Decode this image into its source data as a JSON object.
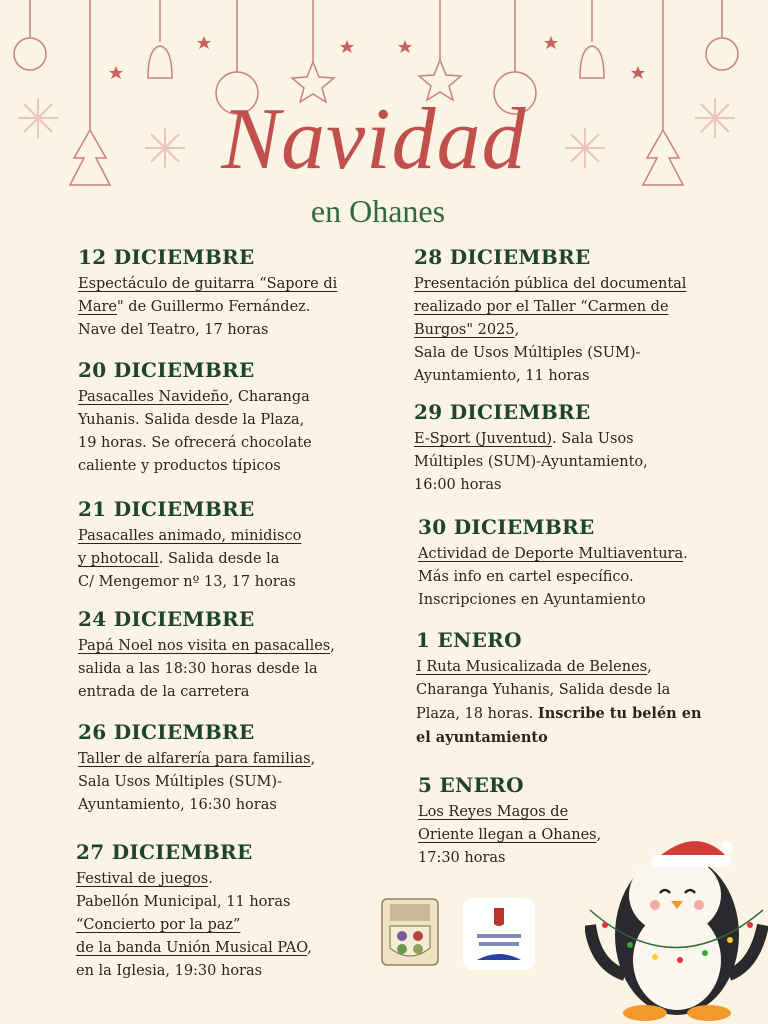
{
  "header": {
    "title": "Navidad",
    "subtitle": "en Ohanes"
  },
  "colors": {
    "background": "#fbf3e3",
    "title": "#c1504c",
    "date": "#1e4526",
    "accent_green": "#2f6a3b"
  },
  "events": [
    {
      "date": "12 DICIEMBRE",
      "lines": [
        [
          {
            "t": "Espectáculo de guitarra “Sapore di",
            "u": true
          }
        ],
        [
          {
            "t": "Mare",
            "u": true
          },
          {
            "t": "\" de  Guillermo Fernández."
          }
        ],
        [
          {
            "t": "Nave del Teatro, 17 horas"
          }
        ]
      ]
    },
    {
      "date": "20 DICIEMBRE",
      "lines": [
        [
          {
            "t": "Pasacalles Navideño",
            "u": true
          },
          {
            "t": ", Charanga"
          }
        ],
        [
          {
            "t": "Yuhanis. Salida desde la Plaza,"
          }
        ],
        [
          {
            "t": "19 horas. Se ofrecerá chocolate"
          }
        ],
        [
          {
            "t": "caliente y productos típicos"
          }
        ]
      ]
    },
    {
      "date": "21 DICIEMBRE",
      "lines": [
        [
          {
            "t": "Pasacalles  animado, minidisco",
            "u": true
          }
        ],
        [
          {
            "t": "y photocall",
            "u": true
          },
          {
            "t": ". Salida desde la"
          }
        ],
        [
          {
            "t": " C/ Mengemor nº 13, 17 horas"
          }
        ]
      ]
    },
    {
      "date": "24 DICIEMBRE",
      "lines": [
        [
          {
            "t": "Papá Noel nos visita en pasacalles",
            "u": true
          },
          {
            "t": ","
          }
        ],
        [
          {
            "t": "salida a las 18:30 horas desde la"
          }
        ],
        [
          {
            "t": "entrada de la carretera"
          }
        ]
      ]
    },
    {
      "date": "26 DICIEMBRE",
      "lines": [
        [
          {
            "t": "Taller de alfarería para familias",
            "u": true
          },
          {
            "t": ","
          }
        ],
        [
          {
            "t": "Sala Usos Múltiples (SUM)-"
          }
        ],
        [
          {
            "t": "Ayuntamiento,  16:30 horas"
          }
        ]
      ]
    },
    {
      "date": "27 DICIEMBRE",
      "lines": [
        [
          {
            "t": "Festival de juegos",
            "u": true
          },
          {
            "t": "."
          }
        ],
        [
          {
            "t": "Pabellón Municipal, 11 horas"
          }
        ],
        [
          {
            "t": "“Concierto por la paz”",
            "u": true
          }
        ],
        [
          {
            "t": "de la banda Unión Musical PAO",
            "u": true
          },
          {
            "t": ","
          }
        ],
        [
          {
            "t": "en la Iglesia, 19:30 horas"
          }
        ]
      ]
    },
    {
      "date": "28 DICIEMBRE",
      "lines": [
        [
          {
            "t": "Presentación pública del documental",
            "u": true
          }
        ],
        [
          {
            "t": "realizado por el Taller “Carmen de",
            "u": true
          }
        ],
        [
          {
            "t": "Burgos\" 2025",
            "u": true
          },
          {
            "t": ","
          }
        ],
        [
          {
            "t": "Sala de Usos Múltiples (SUM)-"
          }
        ],
        [
          {
            "t": "Ayuntamiento, 11 horas"
          }
        ]
      ]
    },
    {
      "date": "29 DICIEMBRE",
      "lines": [
        [
          {
            "t": "E-Sport (Juventud)",
            "u": true
          },
          {
            "t": ". Sala Usos"
          }
        ],
        [
          {
            "t": "Múltiples (SUM)-Ayuntamiento,"
          }
        ],
        [
          {
            "t": "16:00 horas"
          }
        ]
      ]
    },
    {
      "date": "30 DICIEMBRE",
      "lines": [
        [
          {
            "t": "Actividad de Deporte Multiaventura",
            "u": true
          },
          {
            "t": "."
          }
        ],
        [
          {
            "t": "Más info en cartel específico."
          }
        ],
        [
          {
            "t": "Inscripciones en Ayuntamiento"
          }
        ]
      ]
    },
    {
      "date": "1 ENERO",
      "lines": [
        [
          {
            "t": "I Ruta Musicalizada de Belenes",
            "u": true
          },
          {
            "t": ","
          }
        ],
        [
          {
            "t": "Charanga Yuhanis, Salida desde la"
          }
        ],
        [
          {
            "t": "Plaza, 18 horas. "
          },
          {
            "t": "Inscribe tu belén en",
            "b": true
          }
        ],
        [
          {
            "t": "el ayuntamiento",
            "b": true
          }
        ]
      ]
    },
    {
      "date": "5 ENERO",
      "lines": [
        [
          {
            "t": "Los Reyes Magos de",
            "u": true
          }
        ],
        [
          {
            "t": "Oriente llegan a Ohanes",
            "u": true
          },
          {
            "t": ","
          }
        ],
        [
          {
            "t": "17:30 horas"
          }
        ]
      ]
    }
  ],
  "logos": {
    "villa": "VILLA DE OHANES",
    "diputacion": "DIPUTACIÓN DE ALMERÍA"
  }
}
